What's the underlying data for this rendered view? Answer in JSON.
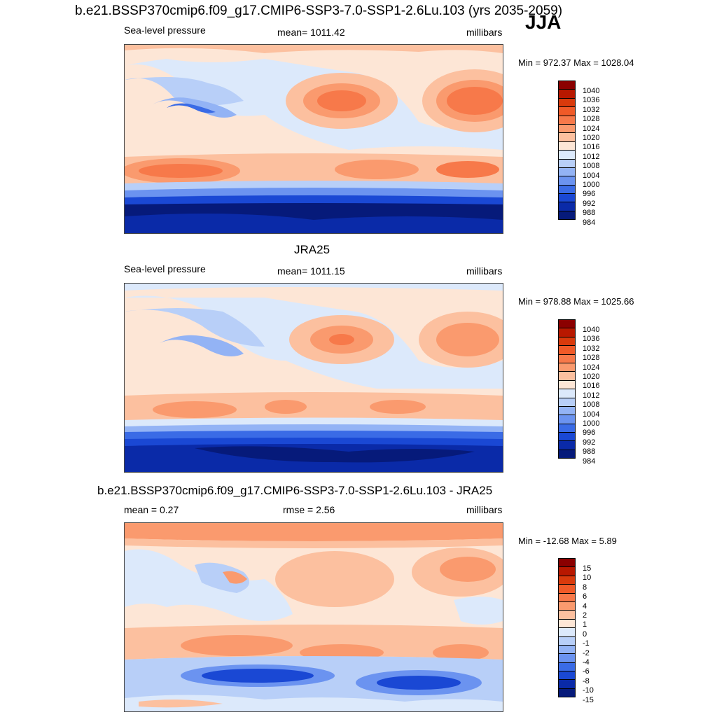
{
  "figure": {
    "title": "b.e21.BSSP370cmip6.f09_g17.CMIP6-SSP3-7.0-SSP1-2.6Lu.103 (yrs 2035-2059)",
    "season": "JJA"
  },
  "panels": [
    {
      "id": "model",
      "title": "",
      "left_label": "Sea-level pressure",
      "center_label": "mean= 1011.42",
      "right_label": "millibars",
      "minmax": "Min = 972.37 Max = 1028.04",
      "legend_labels": [
        "1040",
        "1036",
        "1032",
        "1028",
        "1024",
        "1020",
        "1016",
        "1012",
        "1008",
        "1004",
        "1000",
        "996",
        "992",
        "988",
        "984"
      ]
    },
    {
      "id": "obs",
      "title": "JRA25",
      "left_label": "Sea-level pressure",
      "center_label": "mean= 1011.15",
      "right_label": "millibars",
      "minmax": "Min = 978.88 Max = 1025.66",
      "legend_labels": [
        "1040",
        "1036",
        "1032",
        "1028",
        "1024",
        "1020",
        "1016",
        "1012",
        "1008",
        "1004",
        "1000",
        "996",
        "992",
        "988",
        "984"
      ]
    },
    {
      "id": "diff",
      "title": "b.e21.BSSP370cmip6.f09_g17.CMIP6-SSP3-7.0-SSP1-2.6Lu.103 - JRA25",
      "left_label": "mean =   0.27",
      "center_label": "rmse =   2.56",
      "right_label": "millibars",
      "minmax": "Min = -12.68 Max =   5.89",
      "legend_labels": [
        "15",
        "10",
        "8",
        "6",
        "4",
        "2",
        "1",
        "0",
        "-1",
        "-2",
        "-4",
        "-6",
        "-8",
        "-10",
        "-15"
      ]
    }
  ],
  "colors": {
    "scale": [
      "#8b0000",
      "#b81800",
      "#d93a0c",
      "#f05a28",
      "#f7794a",
      "#fa9a6e",
      "#fcc09f",
      "#fde6d6",
      "#dce9fb",
      "#b8cff8",
      "#93b3f5",
      "#6b93f0",
      "#3a6be6",
      "#1a48d4",
      "#0a2aa8",
      "#061a7a"
    ]
  }
}
